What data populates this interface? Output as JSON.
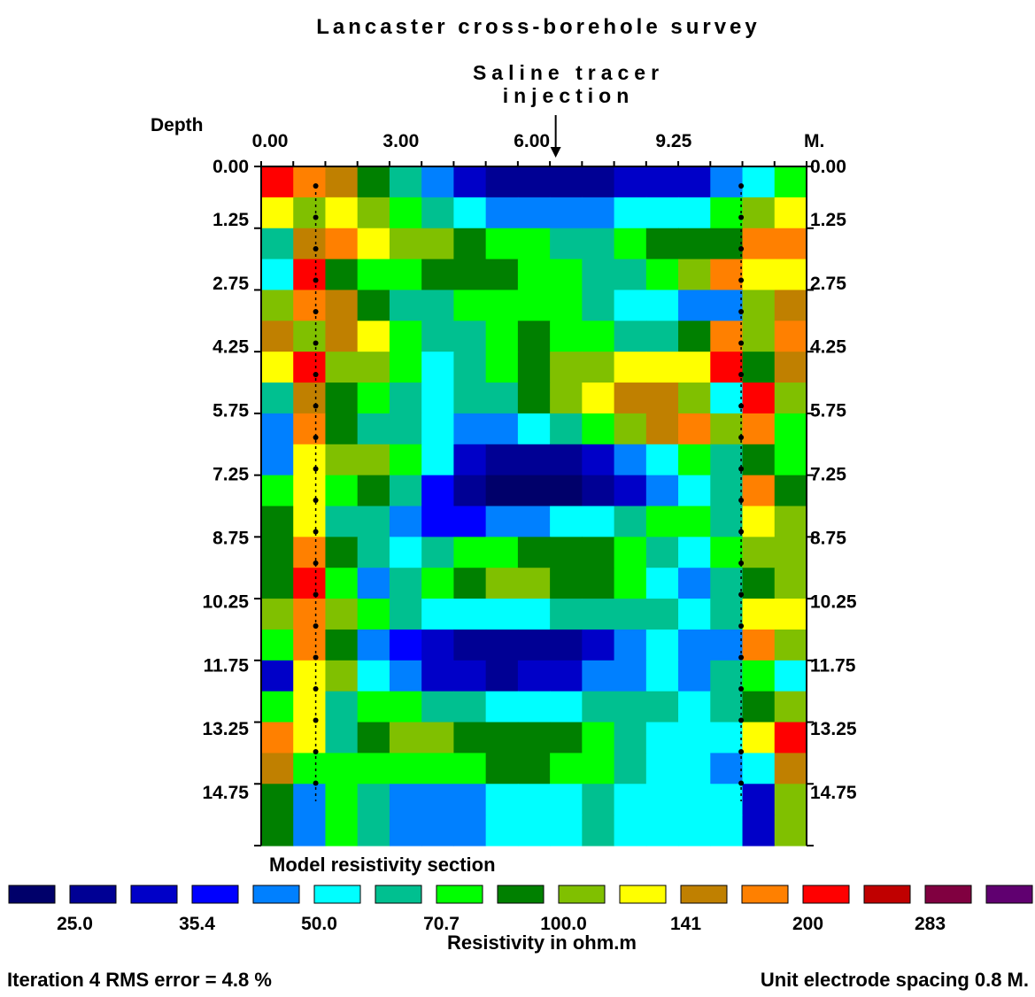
{
  "chart_data": {
    "type": "heatmap",
    "title": "Lancaster cross-borehole survey",
    "annotation": "Saline tracer injection",
    "annotation_lines": [
      "Saline tracer",
      "injection"
    ],
    "annotation_x": 6.75,
    "x_axis": {
      "tick_labels": [
        "0.00",
        "3.00",
        "6.00",
        "9.25"
      ],
      "tick_values": [
        0.0,
        3.0,
        6.0,
        9.25
      ],
      "unit": "M.",
      "range": [
        0.0,
        12.5
      ]
    },
    "y_axis": {
      "label": "Depth",
      "tick_labels": [
        "0.00",
        "1.25",
        "2.75",
        "4.25",
        "5.75",
        "7.25",
        "8.75",
        "10.25",
        "11.75",
        "13.25",
        "14.75"
      ],
      "range": [
        0.0,
        16.0
      ]
    },
    "borehole_x": [
      1.25,
      11.0
    ],
    "section_label": "Model resistivity section",
    "colorbar": {
      "colors": [
        "#00006a",
        "#000094",
        "#0000c8",
        "#0000ff",
        "#0080ff",
        "#00ffff",
        "#00c090",
        "#00ff00",
        "#008000",
        "#80c000",
        "#ffff00",
        "#c08000",
        "#ff8000",
        "#ff0000",
        "#c00000",
        "#800040",
        "#600070"
      ],
      "labels": [
        "25.0",
        "35.4",
        "50.0",
        "70.7",
        "100.0",
        "141",
        "200",
        "283"
      ],
      "label_positions": [
        0,
        2,
        4,
        6,
        8,
        10,
        12,
        14
      ],
      "label": "Resistivity in ohm.m"
    },
    "grid_columns": 17,
    "grid_rows": 22,
    "cell_color_index": [
      [
        13,
        12,
        11,
        8,
        6,
        4,
        2,
        1,
        1,
        1,
        1,
        2,
        2,
        2,
        4,
        5,
        7
      ],
      [
        10,
        9,
        10,
        9,
        7,
        6,
        5,
        4,
        4,
        4,
        4,
        5,
        5,
        5,
        7,
        9,
        10
      ],
      [
        6,
        11,
        12,
        10,
        9,
        9,
        8,
        7,
        7,
        6,
        6,
        7,
        8,
        8,
        8,
        12,
        12
      ],
      [
        5,
        13,
        8,
        7,
        7,
        8,
        8,
        8,
        7,
        7,
        6,
        6,
        7,
        9,
        12,
        10,
        10
      ],
      [
        9,
        12,
        11,
        8,
        6,
        6,
        7,
        7,
        7,
        7,
        6,
        5,
        5,
        4,
        4,
        9,
        11
      ],
      [
        11,
        9,
        11,
        10,
        7,
        6,
        6,
        7,
        8,
        7,
        7,
        6,
        6,
        8,
        12,
        9,
        12
      ],
      [
        10,
        13,
        9,
        9,
        7,
        5,
        6,
        7,
        8,
        9,
        9,
        10,
        10,
        10,
        13,
        8,
        11
      ],
      [
        6,
        11,
        8,
        7,
        6,
        5,
        6,
        6,
        8,
        9,
        10,
        11,
        11,
        9,
        5,
        13,
        9
      ],
      [
        4,
        12,
        8,
        6,
        6,
        5,
        4,
        4,
        5,
        6,
        7,
        9,
        11,
        12,
        9,
        12,
        7
      ],
      [
        4,
        10,
        9,
        9,
        7,
        5,
        2,
        1,
        1,
        1,
        2,
        4,
        5,
        7,
        6,
        8,
        7
      ],
      [
        7,
        10,
        7,
        8,
        6,
        3,
        1,
        0,
        0,
        0,
        1,
        2,
        4,
        5,
        6,
        12,
        8
      ],
      [
        8,
        10,
        6,
        6,
        4,
        3,
        3,
        4,
        4,
        5,
        5,
        6,
        7,
        7,
        6,
        10,
        9
      ],
      [
        8,
        12,
        8,
        6,
        5,
        6,
        7,
        7,
        8,
        8,
        8,
        7,
        6,
        5,
        7,
        9,
        9
      ],
      [
        8,
        13,
        7,
        4,
        6,
        7,
        8,
        9,
        9,
        8,
        8,
        7,
        5,
        4,
        6,
        8,
        9
      ],
      [
        9,
        12,
        9,
        7,
        6,
        5,
        5,
        5,
        5,
        6,
        6,
        6,
        6,
        5,
        6,
        10,
        10
      ],
      [
        7,
        12,
        8,
        4,
        3,
        2,
        1,
        1,
        1,
        1,
        2,
        4,
        5,
        4,
        4,
        12,
        9
      ],
      [
        2,
        10,
        9,
        5,
        4,
        2,
        2,
        1,
        2,
        2,
        4,
        4,
        5,
        4,
        6,
        7,
        5
      ],
      [
        7,
        10,
        6,
        7,
        7,
        6,
        6,
        5,
        5,
        5,
        6,
        6,
        6,
        5,
        6,
        8,
        9
      ],
      [
        12,
        10,
        6,
        8,
        9,
        9,
        8,
        8,
        8,
        8,
        7,
        6,
        5,
        5,
        5,
        10,
        13
      ],
      [
        11,
        7,
        7,
        7,
        7,
        7,
        7,
        8,
        8,
        7,
        7,
        6,
        5,
        5,
        4,
        5,
        11
      ],
      [
        8,
        4,
        7,
        6,
        4,
        4,
        4,
        5,
        5,
        5,
        6,
        5,
        5,
        5,
        5,
        2,
        9
      ],
      [
        8,
        4,
        7,
        6,
        4,
        4,
        4,
        5,
        5,
        5,
        6,
        5,
        5,
        5,
        5,
        2,
        9
      ]
    ]
  },
  "footer": {
    "iteration_text": "Iteration 4 RMS error = 4.8 %",
    "spacing_text": "Unit electrode spacing 0.8 M."
  }
}
